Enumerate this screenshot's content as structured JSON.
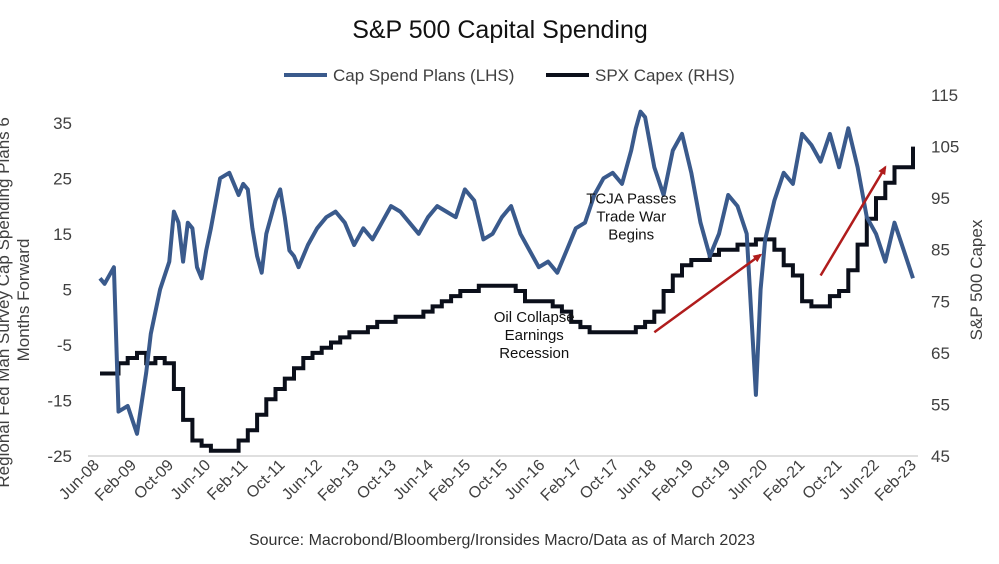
{
  "chart_data": {
    "type": "line",
    "title": "S&P 500 Capital Spending",
    "source": "Source: Macrobond/Bloomberg/Ironsides Macro/Data as of March 2023",
    "ylabel_left": "Regional Fed Man Survey Cap Spending Plans 6 Months Forward",
    "ylabel_right": "S&P 500 Capex",
    "ylim_left": [
      -25,
      40
    ],
    "ylim_right": [
      45,
      115
    ],
    "yticks_left": [
      "35",
      "25",
      "15",
      "5",
      "-5",
      "-15",
      "-25"
    ],
    "yticks_right": [
      "115",
      "105",
      "95",
      "85",
      "75",
      "65",
      "55",
      "45"
    ],
    "x_tick_labels": [
      "Jun-08",
      "Feb-09",
      "Oct-09",
      "Jun-10",
      "Feb-11",
      "Oct-11",
      "Jun-12",
      "Feb-13",
      "Oct-13",
      "Jun-14",
      "Feb-15",
      "Oct-15",
      "Jun-16",
      "Feb-17",
      "Oct-17",
      "Jun-18",
      "Feb-19",
      "Oct-19",
      "Jun-20",
      "Feb-21",
      "Oct-21",
      "Jun-22",
      "Feb-23"
    ],
    "legend_position": "top-center",
    "grid": false,
    "series": [
      {
        "name": "Cap Spend Plans (LHS)",
        "axis": "left",
        "color": "#3a5a8c",
        "x": [
          "2008-06",
          "2008-07",
          "2008-09",
          "2008-10",
          "2008-12",
          "2009-02",
          "2009-04",
          "2009-05",
          "2009-07",
          "2009-09",
          "2009-10",
          "2009-11",
          "2009-12",
          "2010-01",
          "2010-02",
          "2010-03",
          "2010-04",
          "2010-05",
          "2010-06",
          "2010-08",
          "2010-10",
          "2010-12",
          "2011-01",
          "2011-02",
          "2011-03",
          "2011-04",
          "2011-05",
          "2011-06",
          "2011-08",
          "2011-09",
          "2011-10",
          "2011-11",
          "2011-12",
          "2012-01",
          "2012-03",
          "2012-05",
          "2012-07",
          "2012-09",
          "2012-11",
          "2013-01",
          "2013-03",
          "2013-05",
          "2013-07",
          "2013-09",
          "2013-11",
          "2014-01",
          "2014-03",
          "2014-05",
          "2014-07",
          "2014-09",
          "2014-11",
          "2015-01",
          "2015-03",
          "2015-05",
          "2015-07",
          "2015-09",
          "2015-11",
          "2016-01",
          "2016-03",
          "2016-05",
          "2016-07",
          "2016-09",
          "2016-11",
          "2017-01",
          "2017-03",
          "2017-05",
          "2017-07",
          "2017-09",
          "2017-11",
          "2018-01",
          "2018-02",
          "2018-03",
          "2018-04",
          "2018-06",
          "2018-08",
          "2018-10",
          "2018-12",
          "2019-02",
          "2019-04",
          "2019-06",
          "2019-08",
          "2019-10",
          "2019-12",
          "2020-02",
          "2020-04",
          "2020-05",
          "2020-06",
          "2020-08",
          "2020-10",
          "2020-12",
          "2021-02",
          "2021-04",
          "2021-06",
          "2021-08",
          "2021-10",
          "2021-12",
          "2022-02",
          "2022-04",
          "2022-06",
          "2022-08",
          "2022-10",
          "2022-12",
          "2023-02"
        ],
        "values": [
          7,
          6,
          9,
          -17,
          -16,
          -21,
          -10,
          -3,
          5,
          10,
          19,
          17,
          10,
          17,
          16,
          9,
          7,
          12,
          16,
          25,
          26,
          22,
          24,
          23,
          16,
          11,
          8,
          15,
          21,
          23,
          18,
          12,
          11,
          9,
          13,
          16,
          18,
          19,
          17,
          13,
          16,
          14,
          17,
          20,
          19,
          17,
          15,
          18,
          20,
          19,
          18,
          23,
          21,
          14,
          15,
          18,
          20,
          15,
          12,
          9,
          10,
          8,
          12,
          16,
          17,
          22,
          25,
          26,
          24,
          30,
          34,
          37,
          36,
          27,
          22,
          30,
          33,
          26,
          17,
          11,
          15,
          22,
          20,
          15,
          -14,
          5,
          14,
          21,
          26,
          24,
          33,
          31,
          28,
          33,
          27,
          34,
          27,
          18,
          15,
          10,
          17,
          12,
          7
        ]
      },
      {
        "name": "SPX Capex (RHS)",
        "axis": "right",
        "color": "#0b0f1a",
        "x": [
          "2008-06",
          "2008-08",
          "2008-10",
          "2008-12",
          "2009-02",
          "2009-04",
          "2009-06",
          "2009-08",
          "2009-10",
          "2009-12",
          "2010-02",
          "2010-04",
          "2010-06",
          "2010-08",
          "2010-10",
          "2010-12",
          "2011-02",
          "2011-04",
          "2011-06",
          "2011-08",
          "2011-10",
          "2011-12",
          "2012-02",
          "2012-04",
          "2012-06",
          "2012-08",
          "2012-10",
          "2012-12",
          "2013-02",
          "2013-04",
          "2013-06",
          "2013-08",
          "2013-10",
          "2013-12",
          "2014-02",
          "2014-04",
          "2014-06",
          "2014-08",
          "2014-10",
          "2014-12",
          "2015-02",
          "2015-04",
          "2015-06",
          "2015-08",
          "2015-10",
          "2015-12",
          "2016-02",
          "2016-04",
          "2016-06",
          "2016-08",
          "2016-10",
          "2016-12",
          "2017-02",
          "2017-04",
          "2017-06",
          "2017-08",
          "2017-10",
          "2017-12",
          "2018-02",
          "2018-04",
          "2018-06",
          "2018-08",
          "2018-10",
          "2018-12",
          "2019-02",
          "2019-04",
          "2019-06",
          "2019-08",
          "2019-10",
          "2019-12",
          "2020-02",
          "2020-04",
          "2020-06",
          "2020-08",
          "2020-10",
          "2020-12",
          "2021-02",
          "2021-04",
          "2021-06",
          "2021-08",
          "2021-10",
          "2021-12",
          "2022-02",
          "2022-04",
          "2022-06",
          "2022-08",
          "2022-10",
          "2022-12",
          "2023-02"
        ],
        "values": [
          61,
          61,
          63,
          64,
          65,
          63,
          64,
          63,
          58,
          52,
          48,
          47,
          46,
          46,
          46,
          48,
          50,
          53,
          56,
          58,
          60,
          62,
          64,
          65,
          66,
          67,
          68,
          69,
          69,
          70,
          71,
          71,
          72,
          72,
          72,
          73,
          74,
          75,
          76,
          77,
          77,
          78,
          78,
          78,
          78,
          77,
          75,
          75,
          75,
          74,
          73,
          71,
          70,
          69,
          69,
          69,
          69,
          69,
          70,
          71,
          73,
          77,
          80,
          82,
          83,
          83,
          84,
          85,
          85,
          86,
          86,
          87,
          87,
          85,
          82,
          80,
          75,
          74,
          74,
          76,
          77,
          81,
          86,
          91,
          95,
          98,
          101,
          101,
          105
        ]
      }
    ],
    "annotations": [
      {
        "lines": [
          "Oil Collapse",
          "Earnings",
          "Recession"
        ],
        "at": "2016-04",
        "value_rhs": 71
      },
      {
        "lines": [
          "TCJA Passes",
          "Trade War",
          "Begins"
        ],
        "at": "2018-01",
        "value_rhs": 94
      }
    ],
    "arrows": [
      {
        "color": "#b01c1c",
        "from": {
          "x": "2018-06",
          "value_rhs": 69
        },
        "to": {
          "x": "2020-05",
          "value_rhs": 84
        }
      },
      {
        "color": "#b01c1c",
        "from": {
          "x": "2021-06",
          "value_rhs": 80
        },
        "to": {
          "x": "2022-08",
          "value_rhs": 101
        }
      }
    ]
  }
}
